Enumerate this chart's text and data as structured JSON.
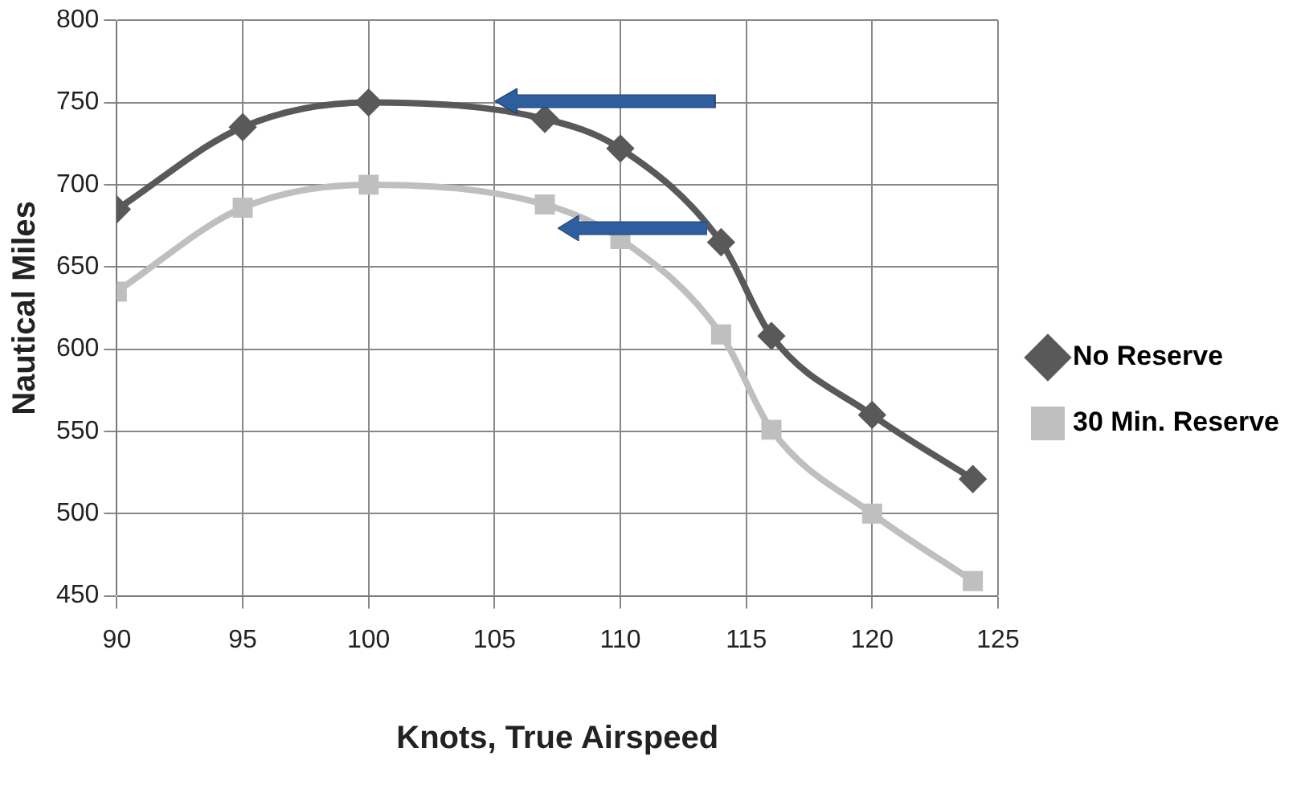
{
  "chart_data": {
    "type": "line",
    "xlabel": "Knots, True Airspeed",
    "ylabel": "Nautical Miles",
    "x": [
      90,
      95,
      100,
      107,
      110,
      114,
      116,
      120,
      124
    ],
    "series": [
      {
        "name": "No Reserve",
        "color": "#595959",
        "marker": "diamond",
        "values": [
          685,
          735,
          750,
          740,
          722,
          665,
          608,
          560,
          521
        ]
      },
      {
        "name": "30 Min. Reserve",
        "color": "#bfbfbf",
        "marker": "square",
        "values": [
          635,
          686,
          700,
          688,
          667,
          609,
          551,
          500,
          459
        ]
      }
    ],
    "xlim": [
      90,
      125
    ],
    "xticks": [
      90,
      95,
      100,
      105,
      110,
      115,
      120,
      125
    ],
    "ylim": [
      450,
      800
    ],
    "yticks": [
      450,
      500,
      550,
      600,
      650,
      700,
      750,
      800
    ],
    "grid": true,
    "legend": "right",
    "line_style": "solid"
  }
}
